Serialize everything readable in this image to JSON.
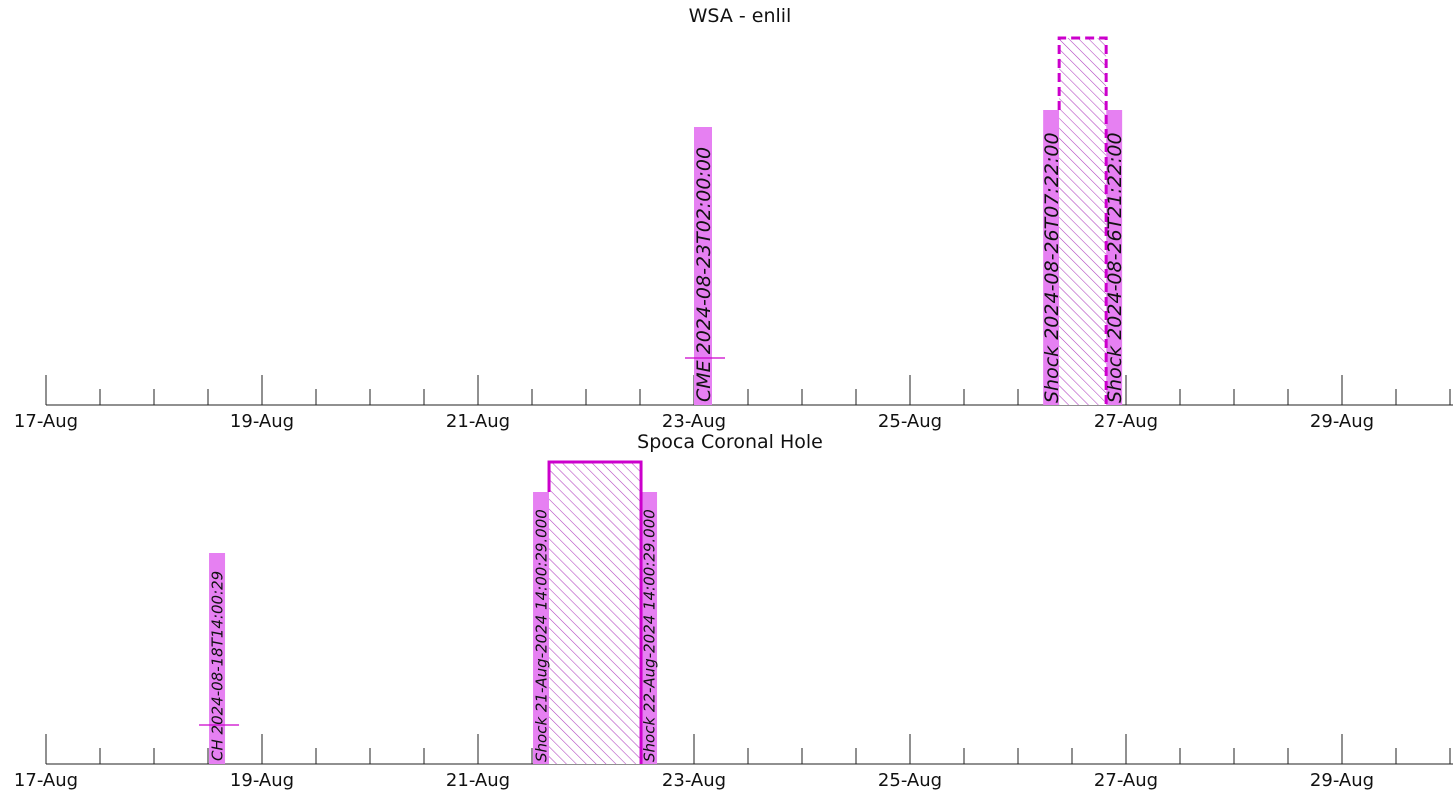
{
  "chart_data": [
    {
      "type": "timeline",
      "title": "WSA - enlil",
      "x_range": [
        "2024-08-17T00:00:00",
        "2024-08-30T12:00:00"
      ],
      "x_tick_labels": [
        "17-Aug",
        "19-Aug",
        "21-Aug",
        "23-Aug",
        "25-Aug",
        "27-Aug",
        "29-Aug"
      ],
      "events": [
        {
          "kind": "marker",
          "time": "2024-08-23T02:00:00",
          "label": "CME 2024-08-23T02:00:00",
          "color": "#e680f2"
        },
        {
          "kind": "span",
          "start": "2024-08-26T07:22:00",
          "end": "2024-08-26T21:22:00",
          "start_label": "Shock 2024-08-26T07:22:00",
          "end_label": "Shock 2024-08-26T21:22:00",
          "color": "#cc00cc",
          "dashed_border": true
        }
      ]
    },
    {
      "type": "timeline",
      "title": "Spoca Coronal Hole",
      "x_range": [
        "2024-08-17T00:00:00",
        "2024-08-30T12:00:00"
      ],
      "x_tick_labels": [
        "17-Aug",
        "19-Aug",
        "21-Aug",
        "23-Aug",
        "25-Aug",
        "27-Aug",
        "29-Aug"
      ],
      "events": [
        {
          "kind": "marker",
          "time": "2024-08-18T14:00:29",
          "label": "CH 2024-08-18T14:00:29",
          "color": "#e680f2"
        },
        {
          "kind": "span",
          "start": "2024-08-21T14:00:29",
          "end": "2024-08-22T14:00:29",
          "start_label": "Shock 21-Aug-2024 14:00:29.000",
          "end_label": "Shock 22-Aug-2024 14:00:29.000",
          "color": "#cc00cc",
          "dashed_border": false
        }
      ]
    }
  ]
}
